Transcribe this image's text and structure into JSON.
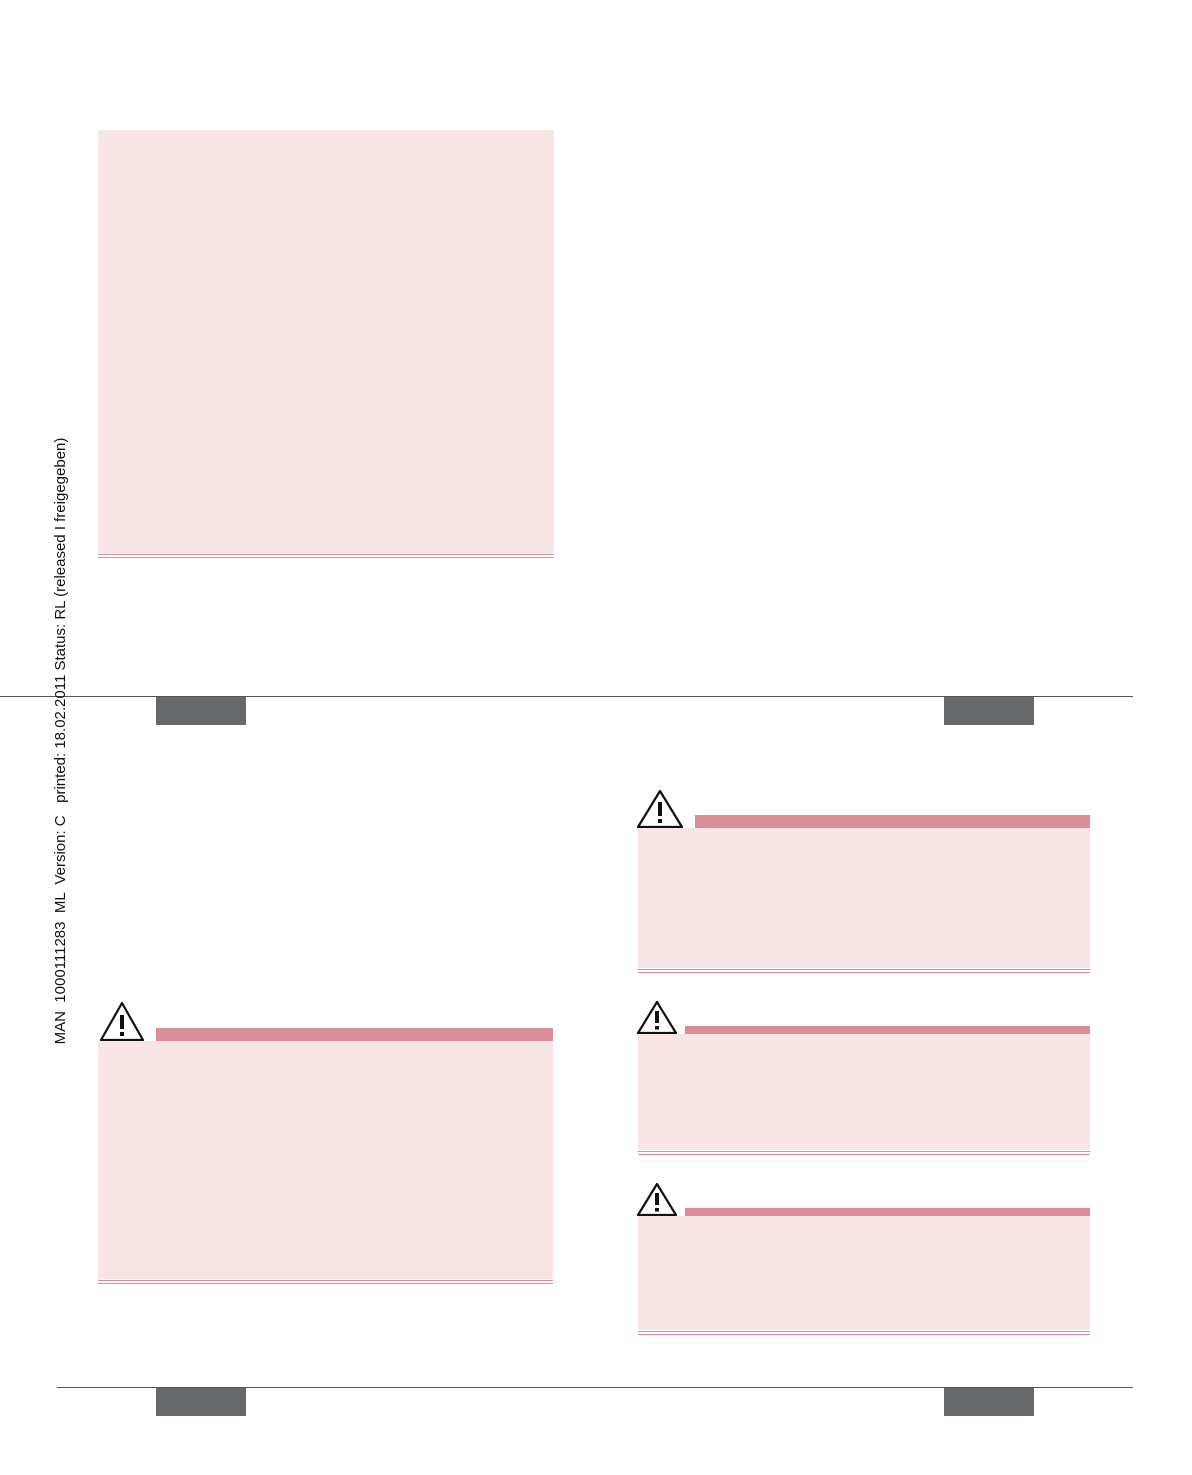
{
  "sidebar": {
    "document_info": "MAN  1000111283  ML  Version: C   printed: 18.02.2011 Status: RL (released I freigegeben)"
  }
}
